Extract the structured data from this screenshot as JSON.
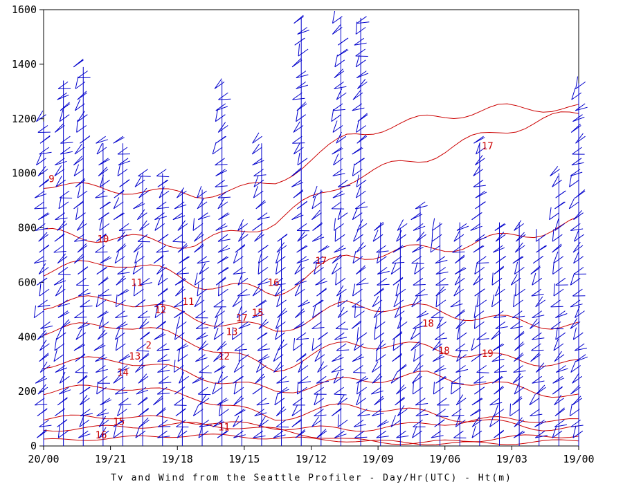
{
  "chart_data": {
    "type": "time-height wind barb and contour plot",
    "xlabel": "Tv and Wind from the Seattle Profiler - Day/Hr(UTC) - Ht(m)",
    "x_ticks": [
      "20/00",
      "19/21",
      "19/18",
      "19/15",
      "19/12",
      "19/09",
      "19/06",
      "19/03",
      "19/00"
    ],
    "y_ticks": [
      0,
      200,
      400,
      600,
      800,
      1000,
      1200,
      1400,
      1600
    ],
    "ylim": [
      0,
      1600
    ],
    "x_direction": "time decreasing left to right",
    "y_unit": "m",
    "profile_columns": [
      {
        "i": 0,
        "top": 1190
      },
      {
        "i": 1,
        "top": 1340
      },
      {
        "i": 2,
        "top": 1390
      },
      {
        "i": 3,
        "top": 1110
      },
      {
        "i": 4,
        "top": 1110
      },
      {
        "i": 5,
        "top": 1000
      },
      {
        "i": 6,
        "top": 1000
      },
      {
        "i": 7,
        "top": 940
      },
      {
        "i": 8,
        "top": 940
      },
      {
        "i": 9,
        "top": 1340
      },
      {
        "i": 10,
        "top": 820
      },
      {
        "i": 11,
        "top": 1110
      },
      {
        "i": 12,
        "top": 760
      },
      {
        "i": 13,
        "top": 1570
      },
      {
        "i": 14,
        "top": 940
      },
      {
        "i": 15,
        "top": 1570
      },
      {
        "i": 16,
        "top": 1570
      },
      {
        "i": 17,
        "top": 820
      },
      {
        "i": 18,
        "top": 800
      },
      {
        "i": 19,
        "top": 880
      },
      {
        "i": 20,
        "top": 820
      },
      {
        "i": 21,
        "top": 820
      },
      {
        "i": 22,
        "top": 1110
      },
      {
        "i": 23,
        "top": 820
      },
      {
        "i": 24,
        "top": 820
      },
      {
        "i": 25,
        "top": 760
      },
      {
        "i": 26,
        "top": 1000
      },
      {
        "i": 27,
        "top": 1330
      }
    ],
    "contour_labels": [
      {
        "text": "9",
        "x": 0.4,
        "y": 980
      },
      {
        "text": "10",
        "x": 3.0,
        "y": 760
      },
      {
        "text": "11",
        "x": 4.7,
        "y": 600
      },
      {
        "text": "12",
        "x": 5.9,
        "y": 500
      },
      {
        "text": "11",
        "x": 7.3,
        "y": 530
      },
      {
        "text": "13",
        "x": 4.6,
        "y": 330
      },
      {
        "text": "14",
        "x": 4.0,
        "y": 270
      },
      {
        "text": "2",
        "x": 5.3,
        "y": 370
      },
      {
        "text": "15",
        "x": 3.8,
        "y": 90
      },
      {
        "text": "16",
        "x": 2.9,
        "y": 40
      },
      {
        "text": "12",
        "x": 9.1,
        "y": 330
      },
      {
        "text": "13",
        "x": 9.5,
        "y": 420
      },
      {
        "text": "17",
        "x": 10.0,
        "y": 470
      },
      {
        "text": "15",
        "x": 10.8,
        "y": 490
      },
      {
        "text": "16",
        "x": 11.6,
        "y": 600
      },
      {
        "text": "11",
        "x": 9.1,
        "y": 70
      },
      {
        "text": "17",
        "x": 14.0,
        "y": 680
      },
      {
        "text": "18",
        "x": 19.4,
        "y": 450
      },
      {
        "text": "18",
        "x": 20.2,
        "y": 350
      },
      {
        "text": "19",
        "x": 22.4,
        "y": 340
      },
      {
        "text": "17",
        "x": 22.4,
        "y": 1100
      }
    ]
  },
  "colors": {
    "barb": "#0000cc",
    "contour": "#cc0000",
    "axis": "#000000"
  }
}
